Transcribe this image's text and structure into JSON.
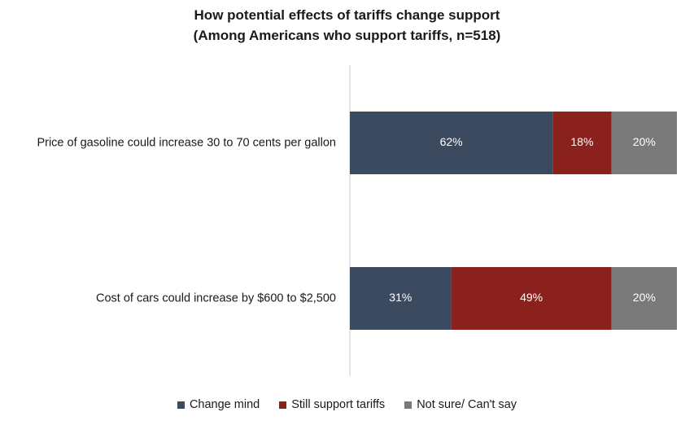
{
  "chart_data": {
    "type": "bar",
    "orientation": "horizontal",
    "stacked": true,
    "title": "How potential effects of tariffs change support",
    "subtitle": "(Among Americans who support tariffs, n=518)",
    "categories": [
      "Price of gasoline could increase 30 to 70 cents per gallon",
      "Cost of cars could increase by $600 to $2,500"
    ],
    "series": [
      {
        "name": "Change mind",
        "values": [
          62,
          31
        ],
        "labels": [
          "62%",
          "31%"
        ],
        "color": "#3b4a5f"
      },
      {
        "name": "Still support tariffs",
        "values": [
          18,
          49
        ],
        "labels": [
          "18%",
          "49%"
        ],
        "color": "#8b211c"
      },
      {
        "name": "Not sure/ Can't say",
        "values": [
          20,
          20
        ],
        "labels": [
          "20%",
          "20%"
        ],
        "color": "#7a7a7a"
      }
    ],
    "xlim": [
      0,
      100
    ],
    "grid": false,
    "legend_position": "bottom",
    "axis_line_color": "#cccccc"
  }
}
